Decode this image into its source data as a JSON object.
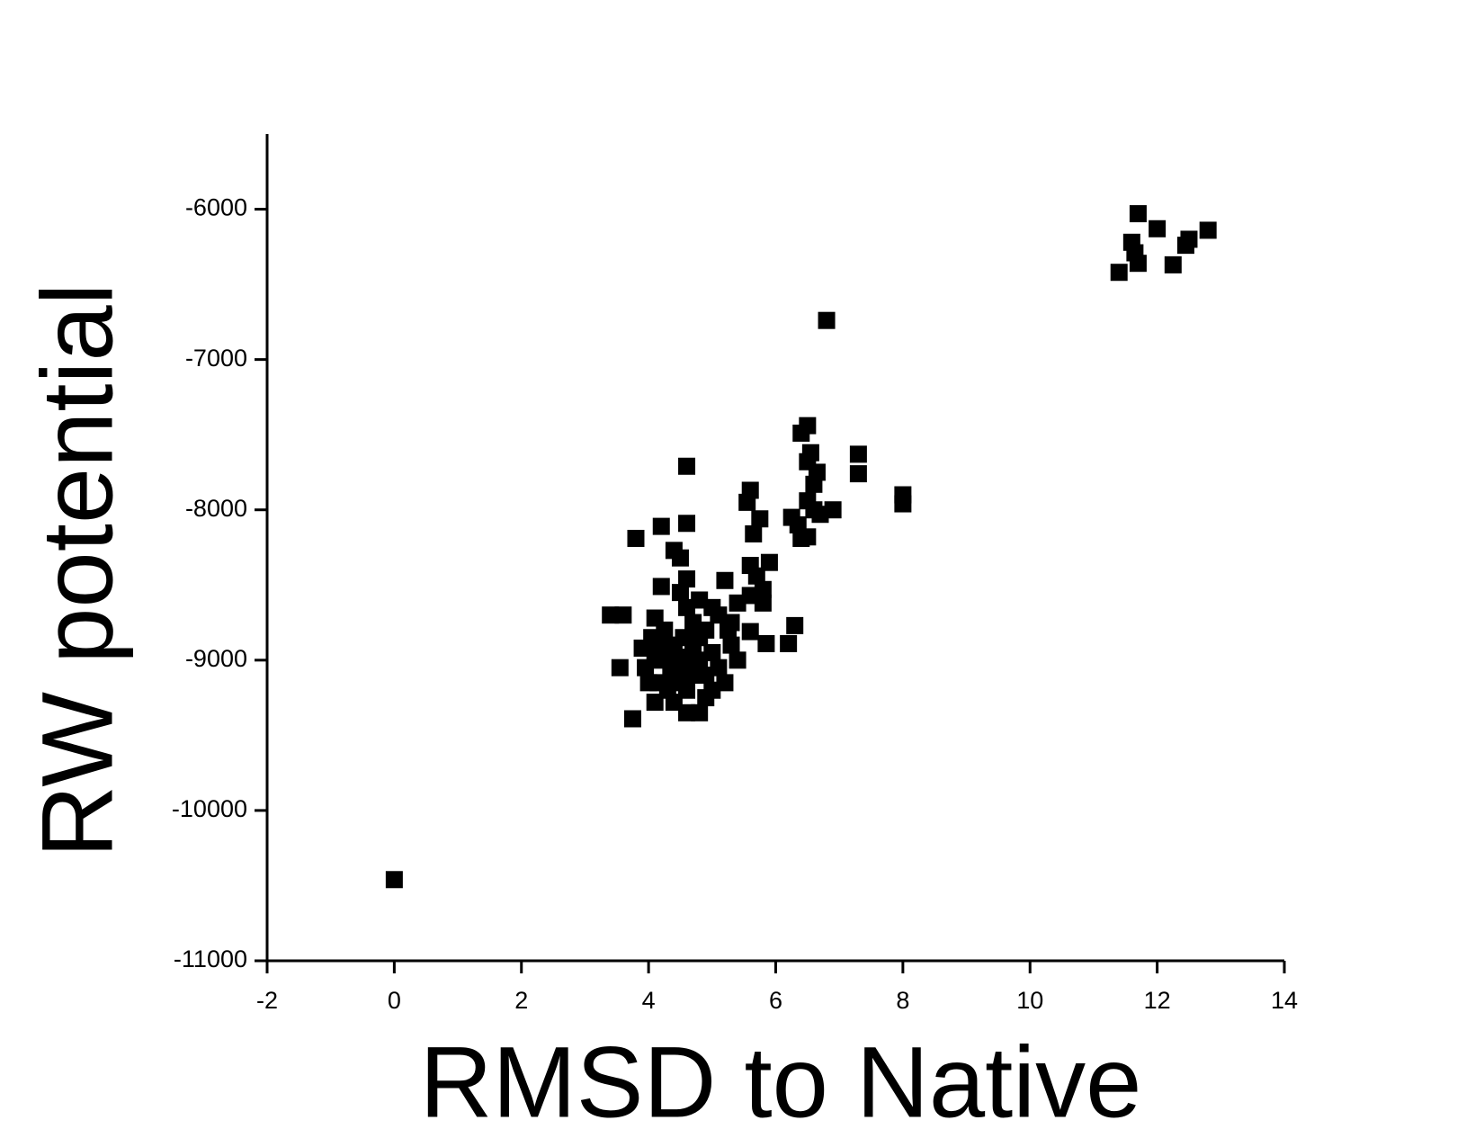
{
  "chart_data": {
    "type": "scatter",
    "x_label": "RMSD to Native",
    "y_label": "RW potential",
    "xlim": [
      -2,
      14
    ],
    "xticks": [
      -2,
      0,
      2,
      4,
      6,
      8,
      10,
      12,
      14
    ],
    "ylim": [
      -11000,
      -5500
    ],
    "yticks": [
      -11000,
      -10000,
      -9000,
      -8000,
      -7000,
      -6000
    ],
    "color": "#000000",
    "marker": "square",
    "x": [
      0,
      11.7,
      12,
      11.6,
      11.65,
      11.7,
      11.4,
      12.25,
      12.45,
      12.5,
      12.8,
      6.8,
      6.5,
      6.4,
      6.55,
      6.5,
      6.65,
      6.6,
      6.5,
      7.3,
      7.3,
      8,
      8,
      6.9,
      6.7,
      6.25,
      6.35,
      6.4,
      6.5,
      6.6,
      4.6,
      4.6,
      4.2,
      3.8,
      4.4,
      4.5,
      5.6,
      5.55,
      5.75,
      5.65,
      5.9,
      5.6,
      5.7,
      5.8,
      5.8,
      5.2,
      4.6,
      4.2,
      4.5,
      3.4,
      3.6,
      4.1,
      5.6,
      5.4,
      5.3,
      5.6,
      5.85,
      6.3,
      6.2,
      3.55,
      3.75,
      4.0,
      4.1,
      4.3,
      4.4,
      4.5,
      4.6,
      4.7,
      4.8,
      4.5,
      4.6,
      4.4,
      4.3,
      4.7,
      4.8,
      4.9,
      5.0,
      5.1,
      5.2,
      5.0,
      4.9,
      4.6,
      4.8,
      4.4,
      4.2,
      4.1,
      3.9,
      3.95,
      4.15,
      4.7,
      4.6,
      4.8,
      5.0,
      5.1,
      5.3,
      5.4,
      4.9,
      4.55,
      4.35,
      4.65,
      5.25,
      4.25,
      4.05
    ],
    "values": [
      -10460,
      -6030,
      -6130,
      -6220,
      -6290,
      -6360,
      -6420,
      -6370,
      -6240,
      -6200,
      -6140,
      -6740,
      -7440,
      -7490,
      -7620,
      -7680,
      -7750,
      -7830,
      -7940,
      -7630,
      -7760,
      -7900,
      -7960,
      -8000,
      -8030,
      -8050,
      -8100,
      -8190,
      -8180,
      -8000,
      -7710,
      -8090,
      -8110,
      -8190,
      -8270,
      -8320,
      -7870,
      -7950,
      -8060,
      -8160,
      -8350,
      -8370,
      -8440,
      -8530,
      -8620,
      -8470,
      -8460,
      -8510,
      -8550,
      -8700,
      -8700,
      -8720,
      -8570,
      -8620,
      -8750,
      -8810,
      -8890,
      -8770,
      -8890,
      -9050,
      -9390,
      -9150,
      -9280,
      -8900,
      -8950,
      -9000,
      -9050,
      -9100,
      -9000,
      -9150,
      -9200,
      -9100,
      -9200,
      -8900,
      -8850,
      -8800,
      -8950,
      -9050,
      -9150,
      -9200,
      -9250,
      -9350,
      -9350,
      -9280,
      -9000,
      -8950,
      -8920,
      -9050,
      -9150,
      -8750,
      -8650,
      -8600,
      -8650,
      -8700,
      -8900,
      -9000,
      -9100,
      -8850,
      -9050,
      -8980,
      -8800,
      -8800,
      -8850
    ]
  }
}
